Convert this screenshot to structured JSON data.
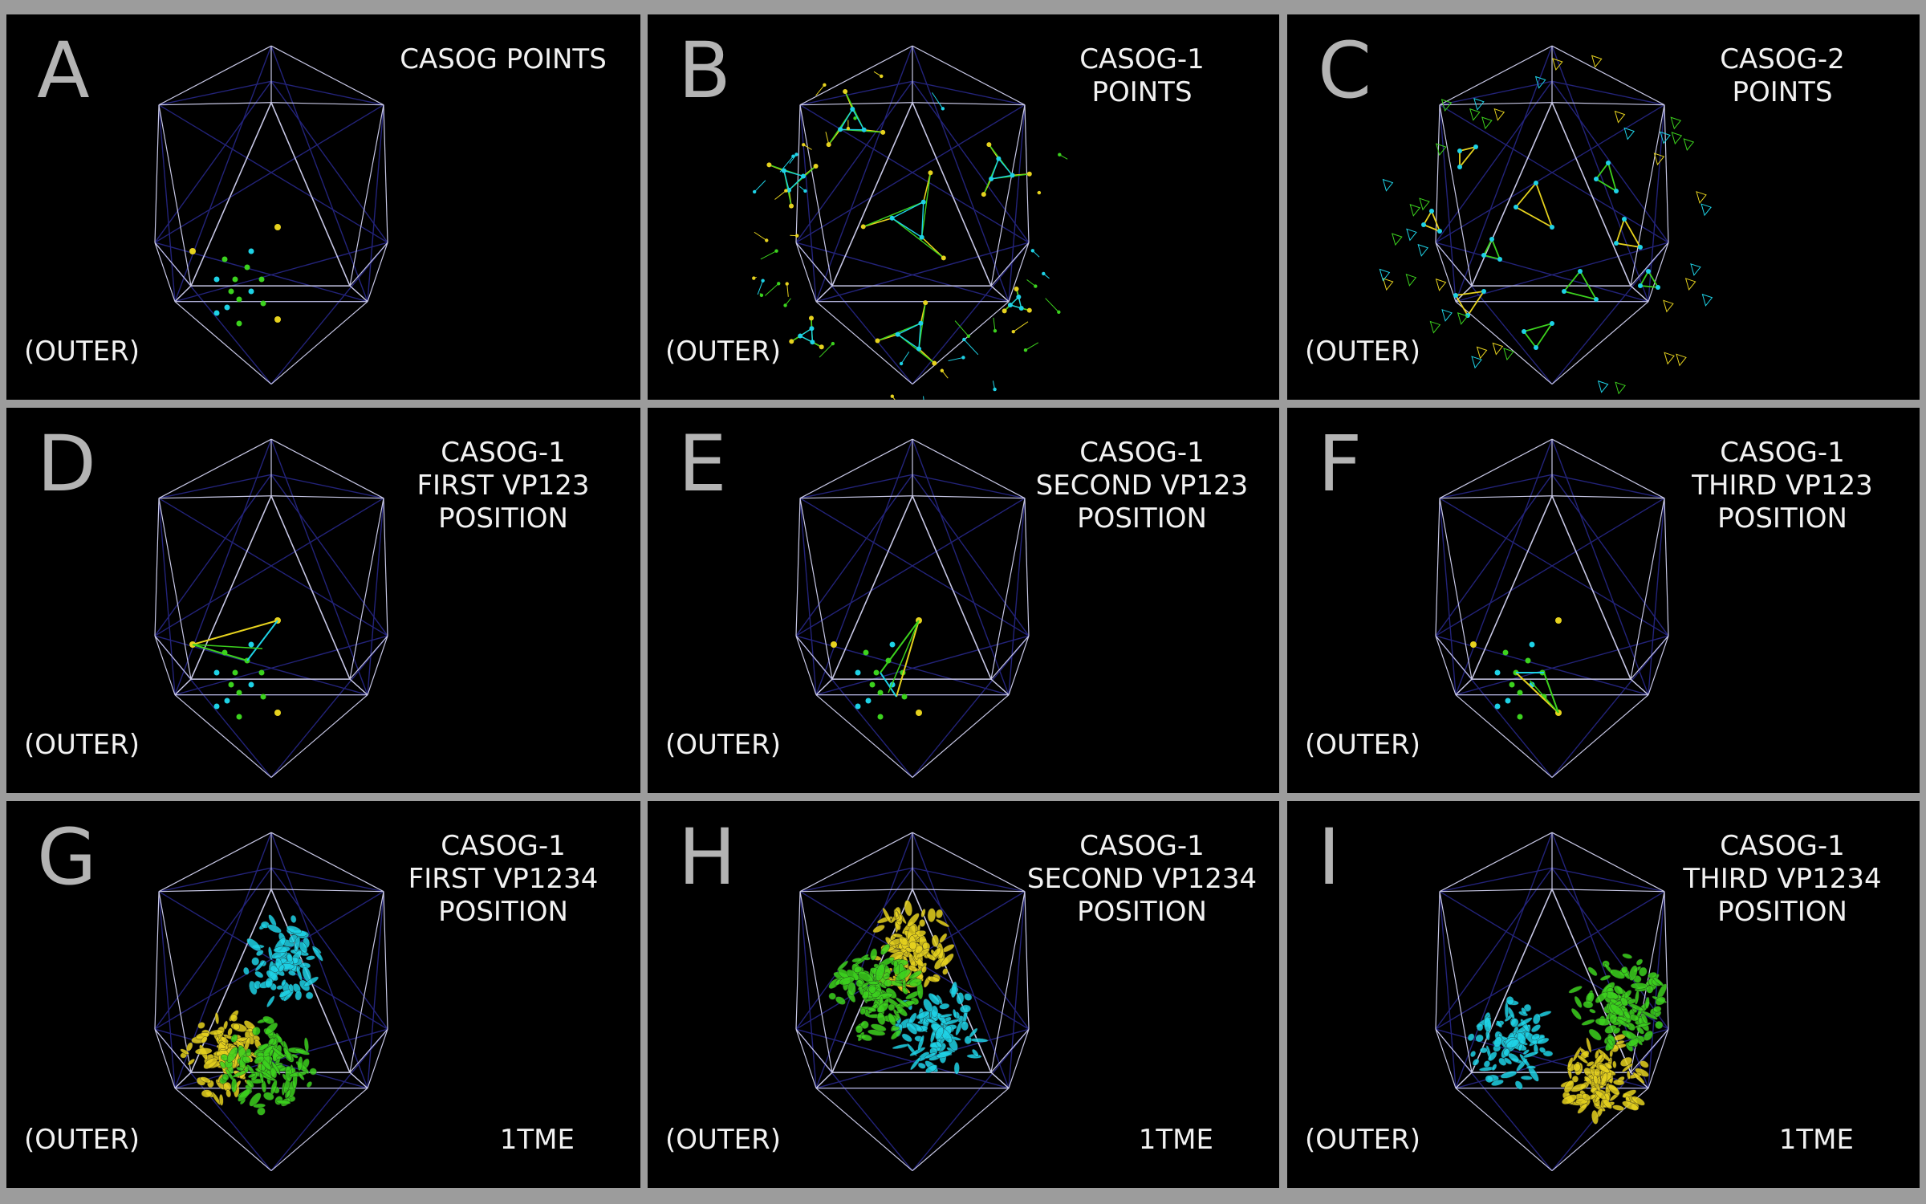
{
  "colors": {
    "background": "#9c9c9c",
    "panel": "#000000",
    "front_edges": "#c8c8e6",
    "back_edges": "#23237a",
    "yellow": "#e6d21e",
    "cyan": "#1ed2e6",
    "green": "#3cd21e"
  },
  "panels": [
    {
      "letter": "A",
      "title": "CASOG POINTS",
      "view": "(OUTER)",
      "pdb": "",
      "content": "casog-points"
    },
    {
      "letter": "B",
      "title": "CASOG-1\nPOINTS",
      "view": "(OUTER)",
      "pdb": "",
      "content": "casog1-network"
    },
    {
      "letter": "C",
      "title": "CASOG-2\nPOINTS",
      "view": "(OUTER)",
      "pdb": "",
      "content": "casog2-network"
    },
    {
      "letter": "D",
      "title": "CASOG-1\nFIRST VP123\nPOSITION",
      "view": "(OUTER)",
      "pdb": "",
      "content": "vp123-first"
    },
    {
      "letter": "E",
      "title": "CASOG-1\nSECOND VP123\nPOSITION",
      "view": "(OUTER)",
      "pdb": "",
      "content": "vp123-second"
    },
    {
      "letter": "F",
      "title": "CASOG-1\nTHIRD VP123\nPOSITION",
      "view": "(OUTER)",
      "pdb": "",
      "content": "vp123-third"
    },
    {
      "letter": "G",
      "title": "CASOG-1\nFIRST VP1234\nPOSITION",
      "view": "(OUTER)",
      "pdb": "1TME",
      "content": "vp1234-first"
    },
    {
      "letter": "H",
      "title": "CASOG-1\nSECOND VP1234\nPOSITION",
      "view": "(OUTER)",
      "pdb": "1TME",
      "content": "vp1234-second"
    },
    {
      "letter": "I",
      "title": "CASOG-1\nTHIRD VP1234\nPOSITION",
      "view": "(OUTER)",
      "pdb": "1TME",
      "content": "vp1234-third"
    }
  ]
}
